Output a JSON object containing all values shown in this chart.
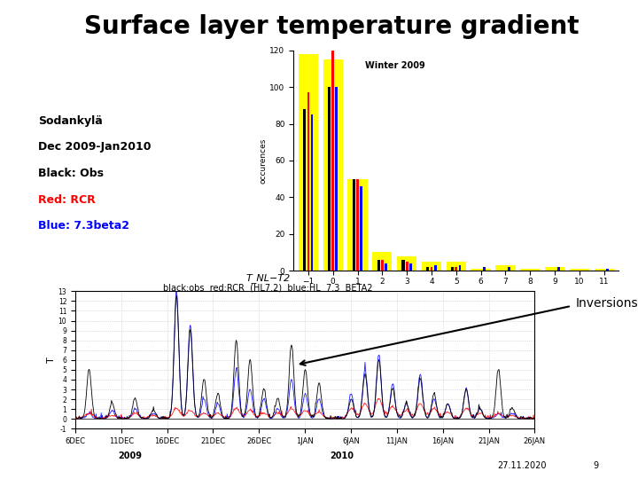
{
  "title": "Surface layer temperature gradient",
  "legend_lines": [
    "Sodankylä",
    "Dec 2009-Jan2010",
    "Black: Obs",
    "Red: RCR",
    "Blue: 7.3beta2"
  ],
  "legend_colors": [
    "black",
    "black",
    "black",
    "red",
    "blue"
  ],
  "hist_title": "Winter 2009",
  "hist_ylabel": "occurences",
  "hist_ylim": [
    0,
    120
  ],
  "hist_yticks": [
    0,
    20,
    40,
    60,
    80,
    100,
    120
  ],
  "hist_xticks": [
    -1,
    0,
    1,
    2,
    3,
    4,
    5,
    6,
    7,
    8,
    9,
    10,
    11
  ],
  "hist_yellow": [
    118,
    115,
    50,
    10,
    8,
    5,
    5,
    1,
    3,
    1,
    2,
    1,
    1
  ],
  "hist_black": [
    88,
    100,
    50,
    6,
    6,
    2,
    2,
    0,
    0,
    0,
    0,
    0,
    0
  ],
  "hist_red": [
    97,
    120,
    50,
    6,
    5,
    2,
    2,
    0,
    0,
    0,
    0,
    0,
    0
  ],
  "hist_blue": [
    85,
    100,
    46,
    4,
    4,
    3,
    3,
    2,
    2,
    0,
    2,
    0,
    1
  ],
  "ts_title1": "T_NL−T2",
  "ts_title2": "black:obs  red:RCR  (HL7.2)  blue:HL  7.3  BETA2",
  "ts_ylabel": "T",
  "ts_xtick_labels": [
    "6DEC",
    "11DEC",
    "16DEC",
    "21DEC",
    "26DEC",
    "1JAN",
    "6JAN",
    "11JAN",
    "16JAN",
    "21JAN",
    "26JAN"
  ],
  "ts_xlabel_bottom1": "2009",
  "ts_xlabel_bottom2": "2010",
  "ts_ylim": [
    -1,
    13
  ],
  "inversions_label": "Inversions",
  "footnote_left": "27.11.2020",
  "footnote_right": "9",
  "background_color": "#ffffff"
}
